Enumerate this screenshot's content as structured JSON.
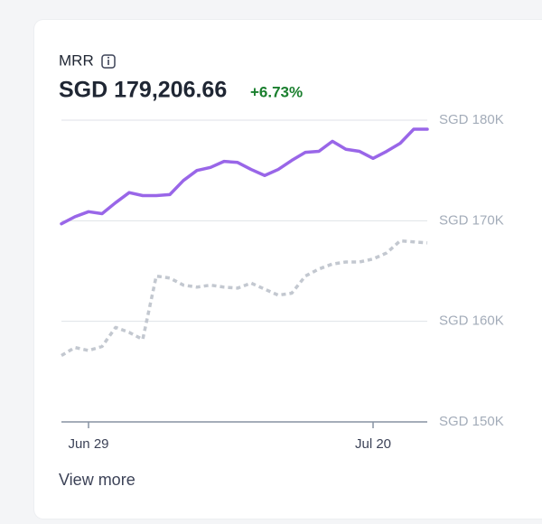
{
  "chart_data": {
    "type": "line",
    "title": "MRR",
    "value": "SGD 179,206.66",
    "change": "+6.73%",
    "change_color": "#1a7f2e",
    "link": "View more",
    "categories": [
      null,
      null,
      "Jun 29",
      null,
      null,
      null,
      null,
      null,
      null,
      null,
      null,
      null,
      null,
      null,
      null,
      null,
      null,
      null,
      null,
      null,
      null,
      null,
      null,
      "Jul 20",
      null,
      null,
      null,
      null
    ],
    "series": [
      {
        "color": "#9966e8",
        "style": "solid",
        "values": [
          169700,
          170400,
          170900,
          170700,
          171800,
          172800,
          172500,
          172500,
          172600,
          174000,
          175000,
          175300,
          175900,
          175800,
          175100,
          174500,
          175100,
          176000,
          176800,
          176900,
          177900,
          177100,
          176900,
          176200,
          176900,
          177700,
          179100,
          179100
        ]
      },
      {
        "color": "#c3c8d0",
        "style": "dotted",
        "values": [
          156600,
          157400,
          157100,
          157500,
          159400,
          158900,
          158200,
          164500,
          164300,
          163600,
          163400,
          163600,
          163400,
          163300,
          163800,
          163200,
          162600,
          162800,
          164500,
          165200,
          165700,
          165900,
          165900,
          166200,
          166800,
          168000,
          167900,
          167800
        ]
      }
    ],
    "ylim": [
      150000,
      180000
    ],
    "yticks": [
      {
        "value": 150000,
        "label": "SGD 150K"
      },
      {
        "value": 160000,
        "label": "SGD 160K"
      },
      {
        "value": 170000,
        "label": "SGD 170K"
      },
      {
        "value": 180000,
        "label": "SGD 180K"
      }
    ],
    "grid": true
  }
}
